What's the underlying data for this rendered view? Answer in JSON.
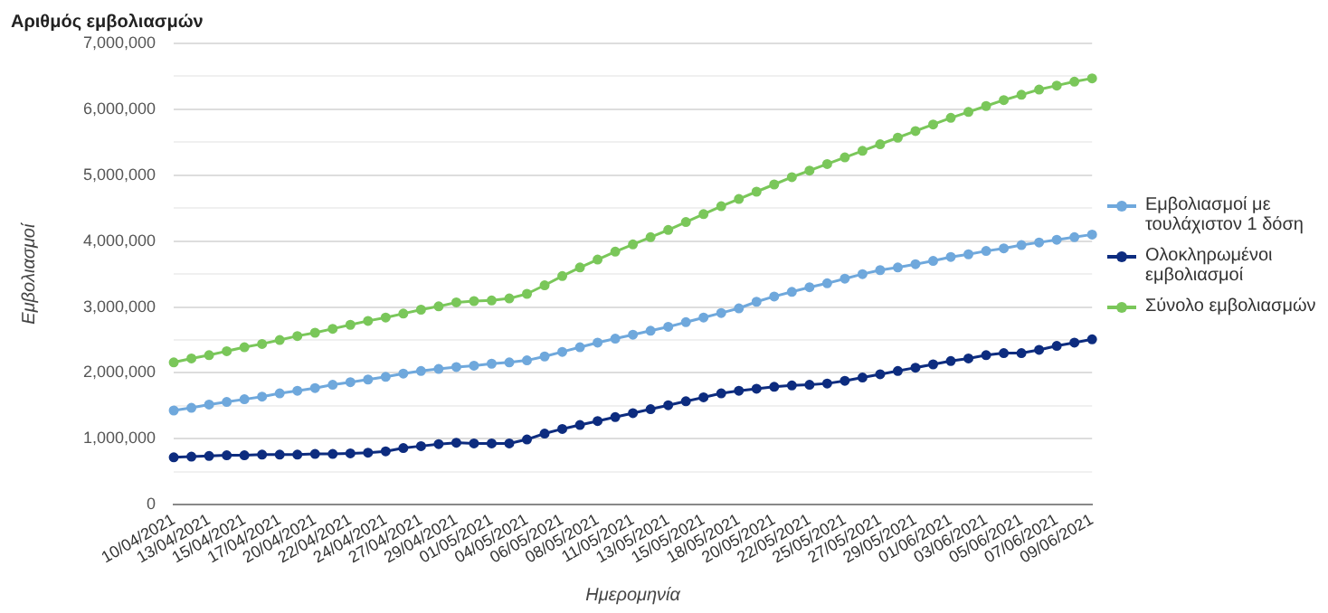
{
  "chart_data": {
    "type": "line",
    "title": "Αριθμός εμβολιασμών",
    "xlabel": "Ημερομηνία",
    "ylabel": "Εμβολιασμοί",
    "categories": [
      "10/04/2021",
      null,
      "13/04/2021",
      null,
      "15/04/2021",
      null,
      "17/04/2021",
      null,
      "20/04/2021",
      null,
      "22/04/2021",
      null,
      "24/04/2021",
      null,
      "27/04/2021",
      null,
      "29/04/2021",
      null,
      "01/05/2021",
      null,
      "04/05/2021",
      null,
      "06/05/2021",
      null,
      "08/05/2021",
      null,
      "11/05/2021",
      null,
      "13/05/2021",
      null,
      "15/05/2021",
      null,
      "18/05/2021",
      null,
      "20/05/2021",
      null,
      "22/05/2021",
      null,
      "25/05/2021",
      null,
      "27/05/2021",
      null,
      "29/05/2021",
      null,
      "01/06/2021",
      null,
      "03/06/2021",
      null,
      "05/06/2021",
      null,
      "07/06/2021",
      null,
      "09/06/2021"
    ],
    "series": [
      {
        "name": "Εμβολιασμοί με τουλάχιστον 1 δόση",
        "color": "#6fa8dc",
        "values": [
          1430000,
          1470000,
          1520000,
          1560000,
          1600000,
          1640000,
          1690000,
          1730000,
          1770000,
          1820000,
          1860000,
          1900000,
          1940000,
          1990000,
          2030000,
          2060000,
          2090000,
          2110000,
          2140000,
          2160000,
          2190000,
          2250000,
          2320000,
          2390000,
          2460000,
          2520000,
          2580000,
          2640000,
          2700000,
          2770000,
          2840000,
          2910000,
          2980000,
          3080000,
          3160000,
          3230000,
          3300000,
          3360000,
          3430000,
          3500000,
          3560000,
          3600000,
          3650000,
          3700000,
          3760000,
          3800000,
          3850000,
          3890000,
          3940000,
          3980000,
          4020000,
          4060000,
          4100000
        ]
      },
      {
        "name": "Ολοκληρωμένοι εμβολιασμοί",
        "color": "#0d2c7f",
        "values": [
          720000,
          730000,
          740000,
          750000,
          750000,
          760000,
          760000,
          760000,
          770000,
          770000,
          780000,
          790000,
          810000,
          860000,
          890000,
          920000,
          940000,
          930000,
          930000,
          930000,
          990000,
          1080000,
          1150000,
          1210000,
          1270000,
          1330000,
          1390000,
          1450000,
          1510000,
          1570000,
          1630000,
          1690000,
          1730000,
          1760000,
          1790000,
          1810000,
          1820000,
          1840000,
          1880000,
          1930000,
          1980000,
          2030000,
          2080000,
          2130000,
          2180000,
          2220000,
          2270000,
          2300000,
          2300000,
          2350000,
          2410000,
          2460000,
          2510000
        ]
      },
      {
        "name": "Σύνολο εμβολιασμών",
        "color": "#7ac75a",
        "values": [
          2160000,
          2220000,
          2270000,
          2330000,
          2390000,
          2440000,
          2500000,
          2560000,
          2610000,
          2670000,
          2730000,
          2790000,
          2840000,
          2900000,
          2960000,
          3010000,
          3070000,
          3090000,
          3100000,
          3130000,
          3200000,
          3330000,
          3470000,
          3600000,
          3720000,
          3840000,
          3950000,
          4060000,
          4170000,
          4290000,
          4410000,
          4530000,
          4640000,
          4750000,
          4860000,
          4970000,
          5070000,
          5170000,
          5270000,
          5370000,
          5470000,
          5570000,
          5670000,
          5770000,
          5870000,
          5960000,
          6050000,
          6140000,
          6220000,
          6300000,
          6360000,
          6420000,
          6470000
        ]
      }
    ],
    "ylim": [
      0,
      7000000
    ],
    "yticks": [
      0,
      {
        "value": 500000,
        "label": null
      },
      {
        "value": 1000000,
        "label": "1,000,000"
      },
      {
        "value": 1500000,
        "label": null
      },
      {
        "value": 2000000,
        "label": "2,000,000"
      },
      {
        "value": 2500000,
        "label": null
      },
      {
        "value": 3000000,
        "label": "3,000,000"
      },
      {
        "value": 3500000,
        "label": null
      },
      {
        "value": 4000000,
        "label": "4,000,000"
      },
      {
        "value": 4500000,
        "label": null
      },
      {
        "value": 5000000,
        "label": "5,000,000"
      },
      {
        "value": 5500000,
        "label": null
      },
      {
        "value": 6000000,
        "label": "6,000,000"
      },
      {
        "value": 6500000,
        "label": null
      },
      {
        "value": 7000000,
        "label": "7,000,000"
      }
    ],
    "grid": "y",
    "legend": "right",
    "marker": "circle",
    "line_style": "solid"
  }
}
